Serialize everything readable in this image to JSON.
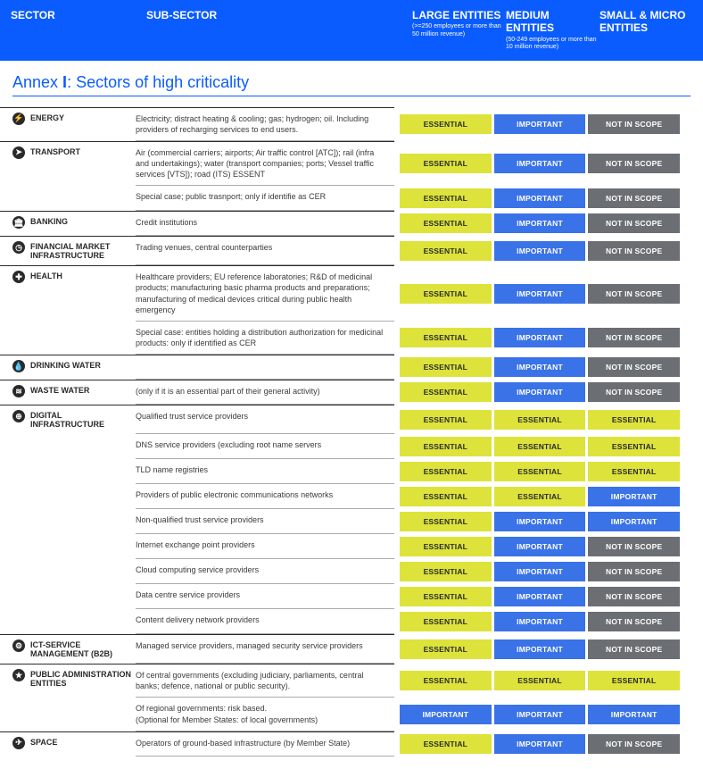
{
  "header": {
    "sector": "SECTOR",
    "subsector": "SUB-SECTOR",
    "large": "LARGE ENTITIES",
    "large_sub": "(>=250 employees or more than 50 million revenue)",
    "medium": "MEDIUM ENTITIES",
    "medium_sub": "(50-249 employees or more than 10 million revenue)",
    "small": "SMALL & MICRO ENTITIES"
  },
  "annex_title_prefix": "Annex ",
  "annex_title_bold": "I",
  "annex_title_suffix": ": Sectors of high criticality",
  "badge_labels": {
    "essential": "ESSENTIAL",
    "important": "IMPORTANT",
    "notinscope": "NOT IN SCOPE"
  },
  "colors": {
    "header_bg": "#0a5cff",
    "essential_bg": "#dde33a",
    "important_bg": "#3a72e8",
    "notinscope_bg": "#6b6f73"
  },
  "sectors": [
    {
      "name": "ENERGY",
      "icon": "⚡",
      "rows": [
        {
          "sub": "Electricity; distract heating & cooling; gas; hydrogen; oil. Including providers of recharging services to end  users.",
          "badges": [
            "essential",
            "important",
            "notinscope"
          ]
        }
      ]
    },
    {
      "name": "TRANSPORT",
      "icon": "➤",
      "rows": [
        {
          "sub": "Air (commercial carriers; airports; Air traffic control [ATC]); rail (infra and undertakings); water (transport companies; ports; Vessel traffic services [VTS]); road (ITS) ESSENT",
          "badges": [
            "essential",
            "important",
            "notinscope"
          ]
        },
        {
          "sub": "Special case; public trasnport; only if identifie as CER",
          "badges": [
            "essential",
            "important",
            "notinscope"
          ]
        }
      ]
    },
    {
      "name": "BANKING",
      "icon": "🏛",
      "rows": [
        {
          "sub": "Credit institutions",
          "badges": [
            "essential",
            "important",
            "notinscope"
          ]
        }
      ]
    },
    {
      "name": "FINANCIAL MARKET INFRASTRUCTURE",
      "icon": "◷",
      "rows": [
        {
          "sub": "Trading venues, central counterparties",
          "badges": [
            "essential",
            "important",
            "notinscope"
          ]
        }
      ]
    },
    {
      "name": "HEALTH",
      "icon": "✚",
      "rows": [
        {
          "sub": "Healthcare providers; EU reference laboratories; R&D of medicinal products; manufacturing basic pharma products and preparations; manufacturing of medical devices critical during public health emergency",
          "badges": [
            "essential",
            "important",
            "notinscope"
          ]
        },
        {
          "sub": "Special case: entities holding a distribution authorization for medicinal products: only if identified as CER",
          "badges": [
            "essential",
            "important",
            "notinscope"
          ]
        }
      ]
    },
    {
      "name": "DRINKING WATER",
      "icon": "💧",
      "rows": [
        {
          "sub": "",
          "badges": [
            "essential",
            "important",
            "notinscope"
          ]
        }
      ]
    },
    {
      "name": "WASTE WATER",
      "icon": "≋",
      "rows": [
        {
          "sub": "(only if it is an essential part of their general activity)",
          "badges": [
            "essential",
            "important",
            "notinscope"
          ]
        }
      ]
    },
    {
      "name": "DIGITAL INFRASTRUCTURE",
      "icon": "⊕",
      "rows": [
        {
          "sub": "Qualified trust service providers",
          "badges": [
            "essential",
            "essential",
            "essential"
          ]
        },
        {
          "sub": "DNS service providers (excluding root name servers",
          "badges": [
            "essential",
            "essential",
            "essential"
          ]
        },
        {
          "sub": "TLD name registries",
          "badges": [
            "essential",
            "essential",
            "essential"
          ]
        },
        {
          "sub": "Providers of public electronic communications networks",
          "badges": [
            "essential",
            "essential",
            "important"
          ]
        },
        {
          "sub": "Non-qualified trust service providers",
          "badges": [
            "essential",
            "important",
            "important"
          ]
        },
        {
          "sub": "Internet exchange point providers",
          "badges": [
            "essential",
            "important",
            "notinscope"
          ]
        },
        {
          "sub": "Cloud computing service providers",
          "badges": [
            "essential",
            "important",
            "notinscope"
          ]
        },
        {
          "sub": "Data centre service providers",
          "badges": [
            "essential",
            "important",
            "notinscope"
          ]
        },
        {
          "sub": "Content delivery network providers",
          "badges": [
            "essential",
            "important",
            "notinscope"
          ]
        }
      ]
    },
    {
      "name": "ICT-SERVICE MANAGEMENT (B2B)",
      "icon": "⚙",
      "rows": [
        {
          "sub": "Managed service providers, managed security service providers",
          "badges": [
            "essential",
            "important",
            "notinscope"
          ]
        }
      ]
    },
    {
      "name": "PUBLIC ADMINISTRATION ENTITIES",
      "icon": "★",
      "rows": [
        {
          "sub": "Of central governments (excluding judiciary, parliaments, central banks; defence, national or public security).",
          "badges": [
            "essential",
            "essential",
            "essential"
          ]
        },
        {
          "sub": "Of regional governments: risk based.\n(Optional for Member States: of local governments)",
          "badges": [
            "important",
            "important",
            "important"
          ]
        }
      ]
    },
    {
      "name": "SPACE",
      "icon": "✈",
      "rows": [
        {
          "sub": "Operators of ground-based infrastructure (by Member State)",
          "badges": [
            "essential",
            "important",
            "notinscope"
          ]
        }
      ]
    }
  ]
}
